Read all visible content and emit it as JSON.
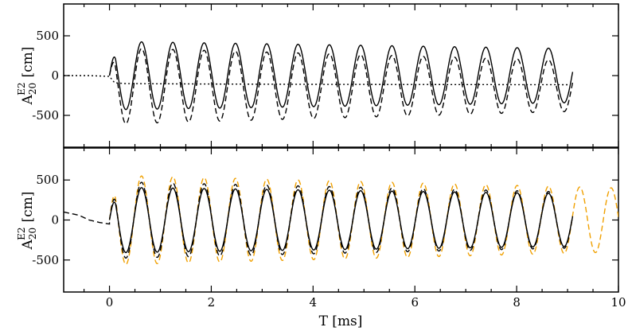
{
  "chart_data": [
    {
      "type": "line",
      "title": "",
      "xlabel": "",
      "ylabel": "A20E2 [cm]",
      "ylabel_parts": {
        "main": "A",
        "sub": "20",
        "sup": "E2",
        "unit": "[cm]"
      },
      "xlim": [
        -0.9,
        10
      ],
      "ylim": [
        -900,
        900
      ],
      "yticks": [
        -500,
        0,
        500
      ],
      "ytick_labels": [
        "-500",
        "0",
        "500"
      ],
      "xticks": [
        0,
        2,
        4,
        6,
        8,
        10
      ],
      "xtick_labels": [],
      "grid": false,
      "legend": "none",
      "series": [
        {
          "style": "solid",
          "color": "#000000",
          "start": 0.0,
          "end": 9.1,
          "period": 0.615,
          "amp_start": 430,
          "amp_end": 340,
          "offset": 0,
          "pre_x": [],
          "pre_y": []
        },
        {
          "style": "dashed",
          "color": "#000000",
          "start": 0.0,
          "end": 9.1,
          "period": 0.615,
          "amp_start": 480,
          "amp_end": 320,
          "offset": -130,
          "pre_x": [],
          "pre_y": []
        },
        {
          "style": "dotted",
          "color": "#000000",
          "kind": "offset-curve",
          "x": [
            -0.9,
            -0.4,
            0.0,
            0.1,
            0.3,
            1,
            2,
            3,
            4,
            5,
            6,
            7,
            8,
            9.0
          ],
          "y": [
            0,
            0,
            -10,
            -90,
            -100,
            -103,
            -106,
            -108,
            -110,
            -111,
            -112,
            -113,
            -114,
            -115
          ]
        }
      ]
    },
    {
      "type": "line",
      "title": "",
      "xlabel": "T [ms]",
      "ylabel": "A20E2 [cm]",
      "ylabel_parts": {
        "main": "A",
        "sub": "20",
        "sup": "E2",
        "unit": "[cm]"
      },
      "xlim": [
        -0.9,
        10
      ],
      "ylim": [
        -900,
        900
      ],
      "yticks": [
        -500,
        0,
        500
      ],
      "ytick_labels": [
        "-500",
        "0",
        "500"
      ],
      "xticks": [
        0,
        2,
        4,
        6,
        8,
        10
      ],
      "xtick_labels": [
        "0",
        "2",
        "4",
        "6",
        "8",
        "10"
      ],
      "grid": false,
      "legend": "none",
      "series": [
        {
          "style": "dashed",
          "color": "#f0a000",
          "start": 0.0,
          "end": 10.0,
          "period": 0.615,
          "amp_start": 560,
          "amp_end": 400,
          "offset": 0,
          "pre_x": [],
          "pre_y": []
        },
        {
          "style": "solid",
          "color": "#000000",
          "start": 0.0,
          "end": 9.1,
          "period": 0.615,
          "amp_start": 410,
          "amp_end": 330,
          "offset": 0,
          "pre_x": [],
          "pre_y": []
        },
        {
          "style": "dashed",
          "color": "#000000",
          "start": 0.0,
          "end": 9.1,
          "period": 0.615,
          "amp_start": 480,
          "amp_end": 350,
          "offset": 0,
          "pre_x": [
            -0.9,
            -0.6,
            -0.4,
            -0.2,
            0.0
          ],
          "pre_y": [
            100,
            60,
            0,
            -30,
            -50
          ]
        }
      ]
    }
  ]
}
